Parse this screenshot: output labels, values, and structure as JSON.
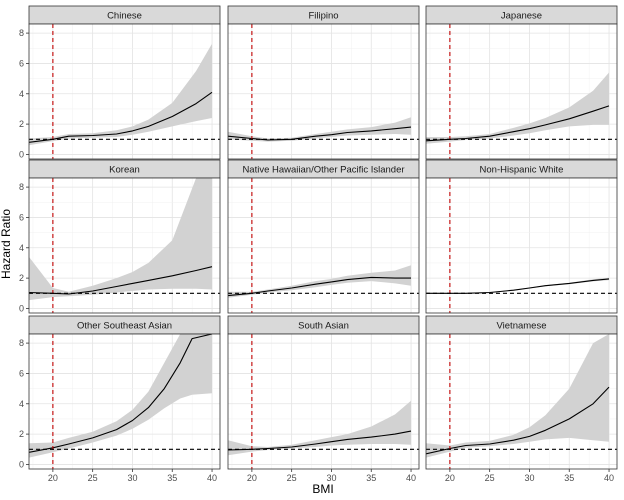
{
  "chart_data": {
    "type": "line",
    "facet_layout": "3x3 grid, shared axes",
    "xlabel": "BMI",
    "ylabel": "Hazard Ratio",
    "xlim": [
      17,
      41
    ],
    "ylim": [
      -0.3,
      8.6
    ],
    "x_ticks": [
      20,
      25,
      30,
      35,
      40
    ],
    "y_ticks": [
      0,
      2,
      4,
      6,
      8
    ],
    "reference_lines": [
      {
        "orientation": "vertical",
        "value": 20,
        "style": "dashed",
        "color": "#c00000"
      },
      {
        "orientation": "horizontal",
        "value": 1,
        "style": "dashed",
        "color": "#000000"
      }
    ],
    "band": "95% confidence interval (grey)",
    "panels": [
      {
        "title": "Chinese",
        "x": [
          17,
          20,
          22,
          25,
          28,
          30,
          32,
          35,
          38,
          40
        ],
        "y": [
          0.8,
          1.0,
          1.2,
          1.25,
          1.35,
          1.55,
          1.85,
          2.5,
          3.35,
          4.1
        ],
        "lower": [
          0.6,
          0.88,
          1.05,
          1.1,
          1.15,
          1.3,
          1.5,
          1.85,
          2.2,
          2.4
        ],
        "upper": [
          1.05,
          1.15,
          1.35,
          1.4,
          1.6,
          1.85,
          2.3,
          3.4,
          5.5,
          7.3
        ]
      },
      {
        "title": "Filipino",
        "x": [
          17,
          20,
          22,
          25,
          28,
          30,
          32,
          35,
          38,
          40
        ],
        "y": [
          1.2,
          1.05,
          0.95,
          1.0,
          1.2,
          1.3,
          1.45,
          1.55,
          1.7,
          1.8
        ],
        "lower": [
          1.0,
          0.9,
          0.85,
          0.9,
          1.05,
          1.15,
          1.25,
          1.3,
          1.35,
          1.3
        ],
        "upper": [
          1.5,
          1.2,
          1.05,
          1.1,
          1.35,
          1.5,
          1.65,
          1.8,
          2.1,
          2.45
        ]
      },
      {
        "title": "Japanese",
        "x": [
          17,
          20,
          22,
          25,
          28,
          30,
          32,
          35,
          38,
          40
        ],
        "y": [
          0.9,
          1.0,
          1.05,
          1.2,
          1.5,
          1.7,
          1.95,
          2.35,
          2.85,
          3.2
        ],
        "lower": [
          0.7,
          0.85,
          0.95,
          1.05,
          1.25,
          1.4,
          1.6,
          1.85,
          1.95,
          1.95
        ],
        "upper": [
          1.15,
          1.15,
          1.2,
          1.35,
          1.75,
          2.05,
          2.4,
          3.1,
          4.2,
          5.4
        ]
      },
      {
        "title": "Korean",
        "x": [
          17,
          20,
          22,
          25,
          28,
          30,
          32,
          35,
          38,
          40
        ],
        "y": [
          1.05,
          1.0,
          0.95,
          1.15,
          1.45,
          1.65,
          1.85,
          2.15,
          2.5,
          2.75
        ],
        "lower": [
          0.55,
          0.75,
          0.8,
          0.9,
          1.05,
          1.15,
          1.25,
          1.3,
          1.3,
          1.25
        ],
        "upper": [
          3.4,
          1.35,
          1.1,
          1.5,
          2.0,
          2.4,
          3.0,
          4.5,
          8.6,
          8.6
        ]
      },
      {
        "title": "Native Hawaiian/Other Pacific Islander",
        "x": [
          17,
          20,
          22,
          25,
          28,
          30,
          32,
          35,
          38,
          40
        ],
        "y": [
          0.85,
          1.0,
          1.15,
          1.35,
          1.6,
          1.75,
          1.9,
          2.05,
          2.0,
          2.0
        ],
        "lower": [
          0.7,
          0.9,
          1.05,
          1.2,
          1.4,
          1.55,
          1.7,
          1.8,
          1.65,
          1.5
        ],
        "upper": [
          1.1,
          1.1,
          1.25,
          1.5,
          1.8,
          1.95,
          2.15,
          2.35,
          2.5,
          2.85
        ]
      },
      {
        "title": "Non-Hispanic White",
        "x": [
          17,
          20,
          22,
          25,
          28,
          30,
          32,
          35,
          38,
          40
        ],
        "y": [
          1.0,
          1.0,
          1.0,
          1.05,
          1.2,
          1.35,
          1.5,
          1.65,
          1.85,
          1.95
        ],
        "lower": [
          0.97,
          0.98,
          0.98,
          1.03,
          1.17,
          1.32,
          1.46,
          1.6,
          1.78,
          1.87
        ],
        "upper": [
          1.03,
          1.02,
          1.02,
          1.07,
          1.23,
          1.38,
          1.54,
          1.7,
          1.92,
          2.03
        ]
      },
      {
        "title": "Other Southeast Asian",
        "x": [
          17,
          20,
          22,
          25,
          28,
          30,
          32,
          34,
          36,
          37.5,
          40
        ],
        "y": [
          0.8,
          1.1,
          1.35,
          1.75,
          2.3,
          2.9,
          3.75,
          5.0,
          6.7,
          8.3,
          8.6
        ],
        "lower": [
          0.45,
          0.8,
          1.05,
          1.45,
          1.9,
          2.35,
          2.95,
          3.7,
          4.35,
          4.6,
          4.7
        ],
        "upper": [
          1.4,
          1.45,
          1.75,
          2.15,
          2.85,
          3.6,
          4.8,
          6.7,
          8.6,
          8.6,
          8.6
        ]
      },
      {
        "title": "South Asian",
        "x": [
          17,
          20,
          22,
          25,
          28,
          30,
          32,
          35,
          38,
          40
        ],
        "y": [
          0.95,
          1.0,
          1.05,
          1.15,
          1.35,
          1.5,
          1.65,
          1.8,
          2.0,
          2.2
        ],
        "lower": [
          0.6,
          0.85,
          0.95,
          1.05,
          1.15,
          1.25,
          1.3,
          1.35,
          1.35,
          1.3
        ],
        "upper": [
          1.6,
          1.2,
          1.15,
          1.3,
          1.6,
          1.8,
          2.0,
          2.5,
          3.3,
          4.2
        ]
      },
      {
        "title": "Vietnamese",
        "x": [
          17,
          20,
          22,
          25,
          28,
          30,
          32,
          35,
          38,
          40
        ],
        "y": [
          0.7,
          1.05,
          1.25,
          1.35,
          1.6,
          1.85,
          2.25,
          3.0,
          4.0,
          5.1
        ],
        "lower": [
          0.45,
          0.85,
          1.1,
          1.2,
          1.35,
          1.5,
          1.65,
          1.75,
          1.6,
          1.5
        ],
        "upper": [
          1.4,
          1.25,
          1.45,
          1.55,
          1.95,
          2.45,
          3.25,
          5.0,
          8.0,
          8.6
        ]
      }
    ]
  }
}
